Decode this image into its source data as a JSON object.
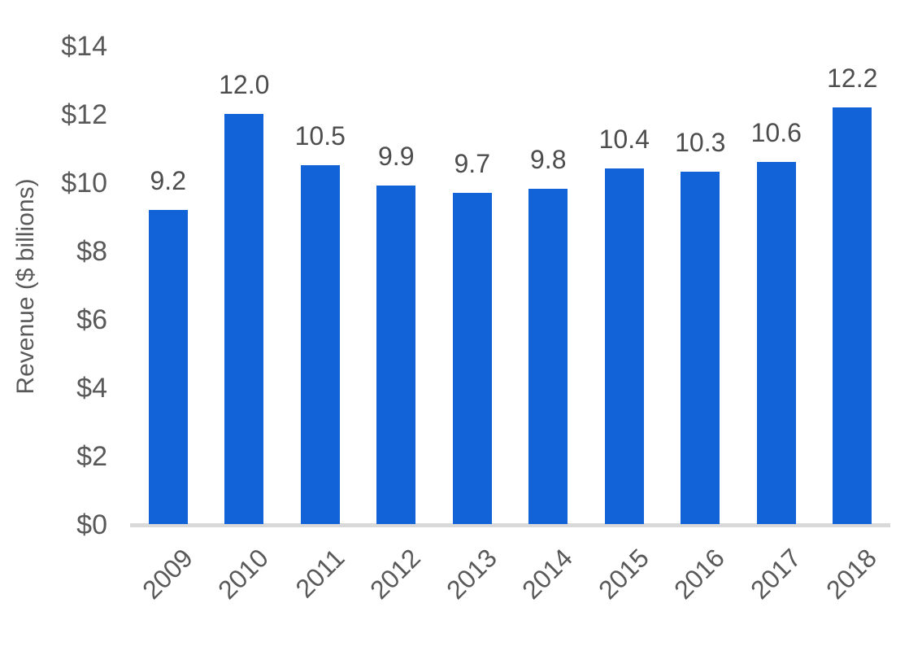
{
  "chart_data": {
    "type": "bar",
    "title": "",
    "xlabel": "",
    "ylabel": "Revenue ($ billions)",
    "categories": [
      "2009",
      "2010",
      "2011",
      "2012",
      "2013",
      "2014",
      "2015",
      "2016",
      "2017",
      "2018"
    ],
    "values": [
      9.2,
      12.0,
      10.5,
      9.9,
      9.7,
      9.8,
      10.4,
      10.3,
      10.6,
      12.2
    ],
    "data_labels": [
      "9.2",
      "12.0",
      "10.5",
      "9.9",
      "9.7",
      "9.8",
      "10.4",
      "10.3",
      "10.6",
      "12.2"
    ],
    "ylim": [
      0,
      14
    ],
    "ytick_labels": [
      "$0",
      "$2",
      "$4",
      "$6",
      "$8",
      "$10",
      "$12",
      "$14"
    ],
    "grid": false,
    "legend": false,
    "colors": {
      "bar": "#1262d8",
      "axis_line": "#d9d9d9",
      "tick_label": "#595959",
      "data_label": "#4d4d4d",
      "axis_title": "#595959"
    }
  }
}
